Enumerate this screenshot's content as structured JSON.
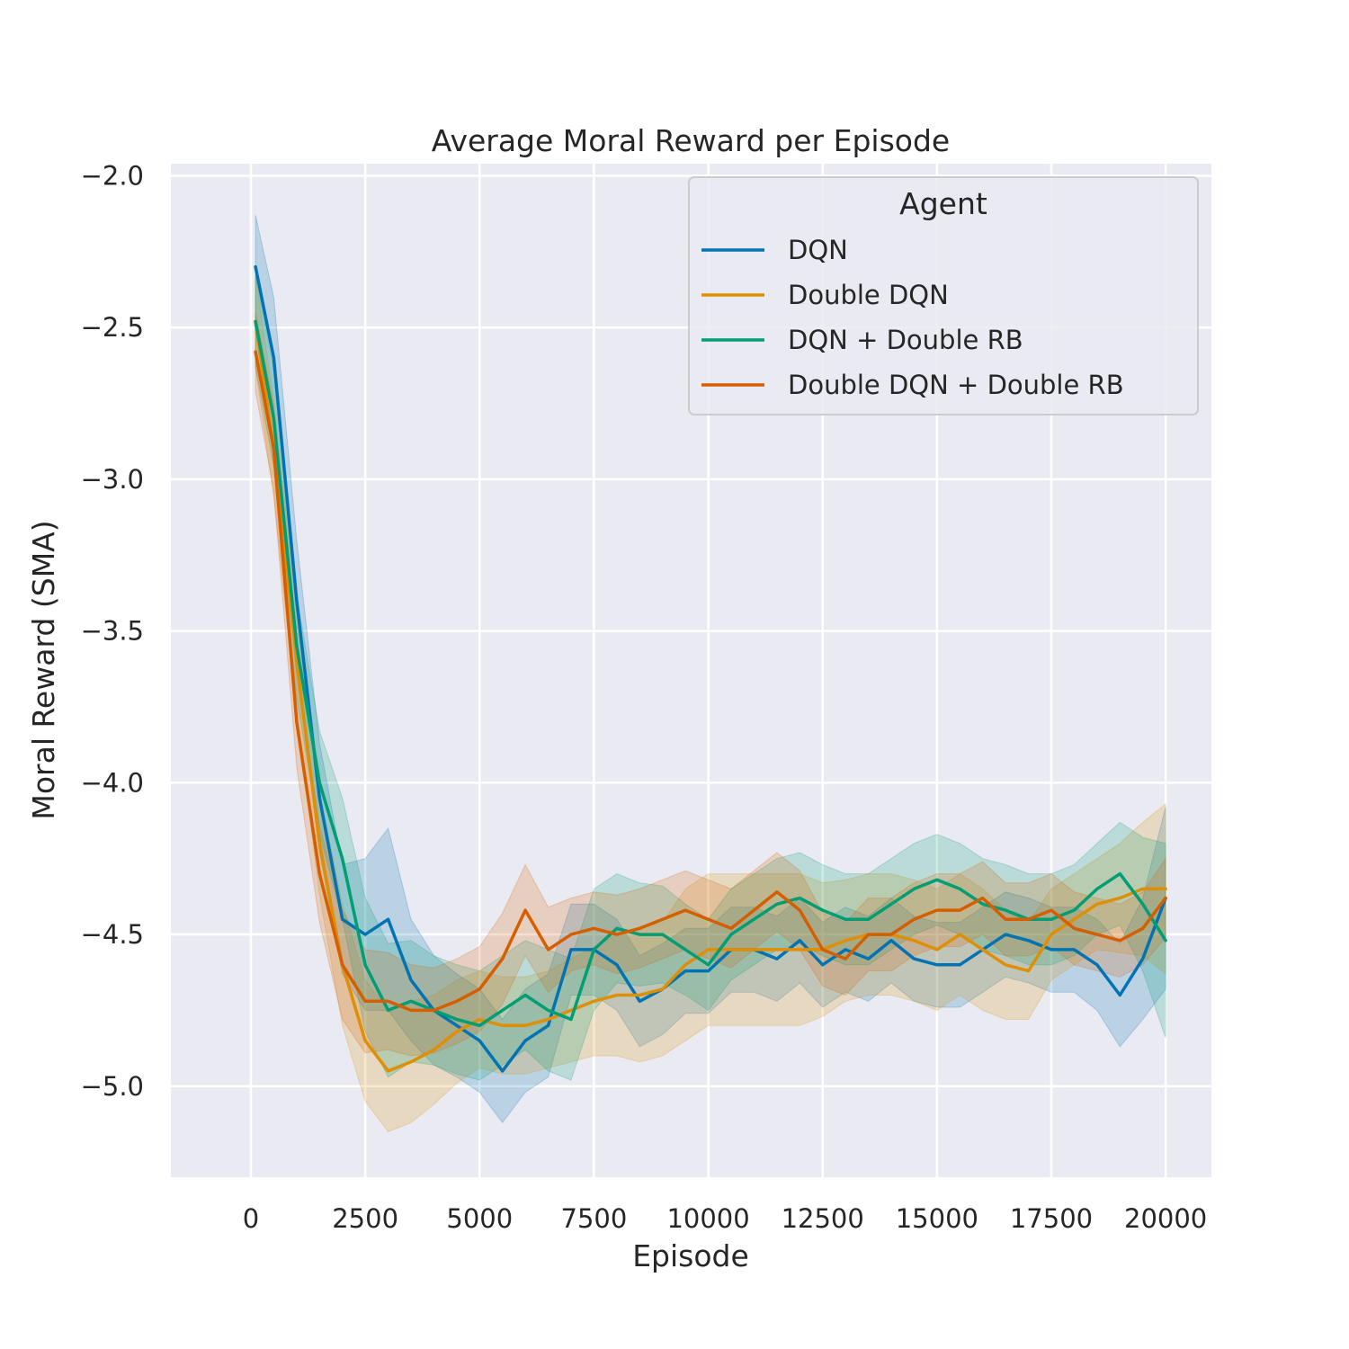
{
  "chart_data": {
    "type": "line",
    "title": "Average Moral Reward per Episode",
    "xlabel": "Episode",
    "ylabel": "Moral Reward (SMA)",
    "xlim": [
      -1750,
      21000
    ],
    "ylim": [
      -5.3,
      -1.96
    ],
    "xticks": [
      0,
      2500,
      5000,
      7500,
      10000,
      12500,
      15000,
      17500,
      20000
    ],
    "xtick_labels": [
      "0",
      "2500",
      "5000",
      "7500",
      "10000",
      "12500",
      "15000",
      "17500",
      "20000"
    ],
    "yticks": [
      -2.0,
      -2.5,
      -3.0,
      -3.5,
      -4.0,
      -4.5,
      -5.0
    ],
    "ytick_labels": [
      "−2.0",
      "−2.5",
      "−3.0",
      "−3.5",
      "−4.0",
      "−4.5",
      "−5.0"
    ],
    "grid": true,
    "background": "#eaeaf2",
    "legend": {
      "title": "Agent",
      "placement": "top-right"
    },
    "series": [
      {
        "name": "DQN",
        "color": "#0173b2",
        "x": [
          100,
          500,
          1000,
          1500,
          2000,
          2500,
          3000,
          3500,
          4000,
          4500,
          5000,
          5500,
          6000,
          6500,
          7000,
          7500,
          8000,
          8500,
          9000,
          9500,
          10000,
          10500,
          11000,
          11500,
          12000,
          12500,
          13000,
          13500,
          14000,
          14500,
          15000,
          15500,
          16000,
          16500,
          17000,
          17500,
          18000,
          18500,
          19000,
          19500,
          20000
        ],
        "y": [
          -2.3,
          -2.6,
          -3.4,
          -4.05,
          -4.45,
          -4.5,
          -4.45,
          -4.65,
          -4.75,
          -4.8,
          -4.85,
          -4.95,
          -4.85,
          -4.8,
          -4.55,
          -4.55,
          -4.6,
          -4.72,
          -4.68,
          -4.62,
          -4.62,
          -4.55,
          -4.55,
          -4.58,
          -4.52,
          -4.6,
          -4.55,
          -4.58,
          -4.52,
          -4.58,
          -4.6,
          -4.6,
          -4.55,
          -4.5,
          -4.52,
          -4.55,
          -4.55,
          -4.6,
          -4.7,
          -4.58,
          -4.38
        ],
        "ci": [
          0.17,
          0.2,
          0.2,
          0.18,
          0.18,
          0.25,
          0.3,
          0.2,
          0.18,
          0.17,
          0.17,
          0.17,
          0.17,
          0.17,
          0.15,
          0.15,
          0.15,
          0.15,
          0.15,
          0.14,
          0.14,
          0.14,
          0.14,
          0.14,
          0.14,
          0.14,
          0.14,
          0.14,
          0.14,
          0.14,
          0.14,
          0.14,
          0.14,
          0.14,
          0.14,
          0.14,
          0.14,
          0.15,
          0.17,
          0.2,
          0.3
        ]
      },
      {
        "name": "Double DQN",
        "color": "#de8f05",
        "x": [
          100,
          500,
          1000,
          1500,
          2000,
          2500,
          3000,
          3500,
          4000,
          4500,
          5000,
          5500,
          6000,
          6500,
          7000,
          7500,
          8000,
          8500,
          9000,
          9500,
          10000,
          10500,
          11000,
          11500,
          12000,
          12500,
          13000,
          13500,
          14000,
          14500,
          15000,
          15500,
          16000,
          16500,
          17000,
          17500,
          18000,
          18500,
          19000,
          19500,
          20000
        ],
        "y": [
          -2.48,
          -2.9,
          -3.6,
          -4.2,
          -4.6,
          -4.85,
          -4.95,
          -4.92,
          -4.88,
          -4.82,
          -4.78,
          -4.8,
          -4.8,
          -4.78,
          -4.75,
          -4.72,
          -4.7,
          -4.7,
          -4.68,
          -4.6,
          -4.55,
          -4.55,
          -4.55,
          -4.55,
          -4.55,
          -4.55,
          -4.52,
          -4.5,
          -4.5,
          -4.52,
          -4.55,
          -4.5,
          -4.55,
          -4.6,
          -4.62,
          -4.5,
          -4.45,
          -4.4,
          -4.38,
          -4.35,
          -4.35
        ],
        "ci": [
          0.15,
          0.16,
          0.17,
          0.17,
          0.2,
          0.2,
          0.2,
          0.2,
          0.18,
          0.17,
          0.16,
          0.16,
          0.16,
          0.16,
          0.17,
          0.18,
          0.2,
          0.22,
          0.22,
          0.25,
          0.25,
          0.25,
          0.25,
          0.25,
          0.25,
          0.22,
          0.2,
          0.2,
          0.2,
          0.2,
          0.2,
          0.2,
          0.2,
          0.18,
          0.16,
          0.15,
          0.15,
          0.15,
          0.18,
          0.22,
          0.28
        ]
      },
      {
        "name": "DQN + Double RB",
        "color": "#029e73",
        "x": [
          100,
          500,
          1000,
          1500,
          2000,
          2500,
          3000,
          3500,
          4000,
          4500,
          5000,
          5500,
          6000,
          6500,
          7000,
          7500,
          8000,
          8500,
          9000,
          9500,
          10000,
          10500,
          11000,
          11500,
          12000,
          12500,
          13000,
          13500,
          14000,
          14500,
          15000,
          15500,
          16000,
          16500,
          17000,
          17500,
          18000,
          18500,
          19000,
          19500,
          20000
        ],
        "y": [
          -2.48,
          -2.8,
          -3.55,
          -4.0,
          -4.25,
          -4.6,
          -4.75,
          -4.72,
          -4.75,
          -4.78,
          -4.8,
          -4.75,
          -4.7,
          -4.75,
          -4.78,
          -4.55,
          -4.48,
          -4.5,
          -4.5,
          -4.55,
          -4.6,
          -4.5,
          -4.45,
          -4.4,
          -4.38,
          -4.42,
          -4.45,
          -4.45,
          -4.4,
          -4.35,
          -4.32,
          -4.35,
          -4.4,
          -4.42,
          -4.45,
          -4.45,
          -4.42,
          -4.35,
          -4.3,
          -4.4,
          -4.52
        ],
        "ci": [
          0.15,
          0.16,
          0.17,
          0.17,
          0.2,
          0.22,
          0.22,
          0.2,
          0.18,
          0.18,
          0.18,
          0.18,
          0.18,
          0.2,
          0.2,
          0.2,
          0.18,
          0.17,
          0.16,
          0.15,
          0.15,
          0.15,
          0.15,
          0.15,
          0.15,
          0.15,
          0.15,
          0.15,
          0.15,
          0.15,
          0.15,
          0.15,
          0.15,
          0.15,
          0.15,
          0.15,
          0.15,
          0.15,
          0.17,
          0.22,
          0.32
        ]
      },
      {
        "name": "Double DQN + Double RB",
        "color": "#d55e00",
        "x": [
          100,
          500,
          1000,
          1500,
          2000,
          2500,
          3000,
          3500,
          4000,
          4500,
          5000,
          5500,
          6000,
          6500,
          7000,
          7500,
          8000,
          8500,
          9000,
          9500,
          10000,
          10500,
          11000,
          11500,
          12000,
          12500,
          13000,
          13500,
          14000,
          14500,
          15000,
          15500,
          16000,
          16500,
          17000,
          17500,
          18000,
          18500,
          19000,
          19500,
          20000
        ],
        "y": [
          -2.58,
          -2.9,
          -3.8,
          -4.3,
          -4.6,
          -4.72,
          -4.72,
          -4.75,
          -4.75,
          -4.72,
          -4.68,
          -4.58,
          -4.42,
          -4.55,
          -4.5,
          -4.48,
          -4.5,
          -4.48,
          -4.45,
          -4.42,
          -4.45,
          -4.48,
          -4.42,
          -4.36,
          -4.42,
          -4.55,
          -4.58,
          -4.5,
          -4.5,
          -4.45,
          -4.42,
          -4.42,
          -4.38,
          -4.45,
          -4.45,
          -4.42,
          -4.48,
          -4.5,
          -4.52,
          -4.48,
          -4.38
        ],
        "ci": [
          0.13,
          0.14,
          0.15,
          0.16,
          0.18,
          0.17,
          0.16,
          0.15,
          0.14,
          0.14,
          0.14,
          0.15,
          0.15,
          0.14,
          0.12,
          0.12,
          0.13,
          0.13,
          0.13,
          0.13,
          0.13,
          0.13,
          0.13,
          0.13,
          0.13,
          0.12,
          0.12,
          0.12,
          0.12,
          0.12,
          0.12,
          0.12,
          0.12,
          0.12,
          0.12,
          0.12,
          0.12,
          0.12,
          0.12,
          0.12,
          0.13
        ]
      }
    ]
  }
}
